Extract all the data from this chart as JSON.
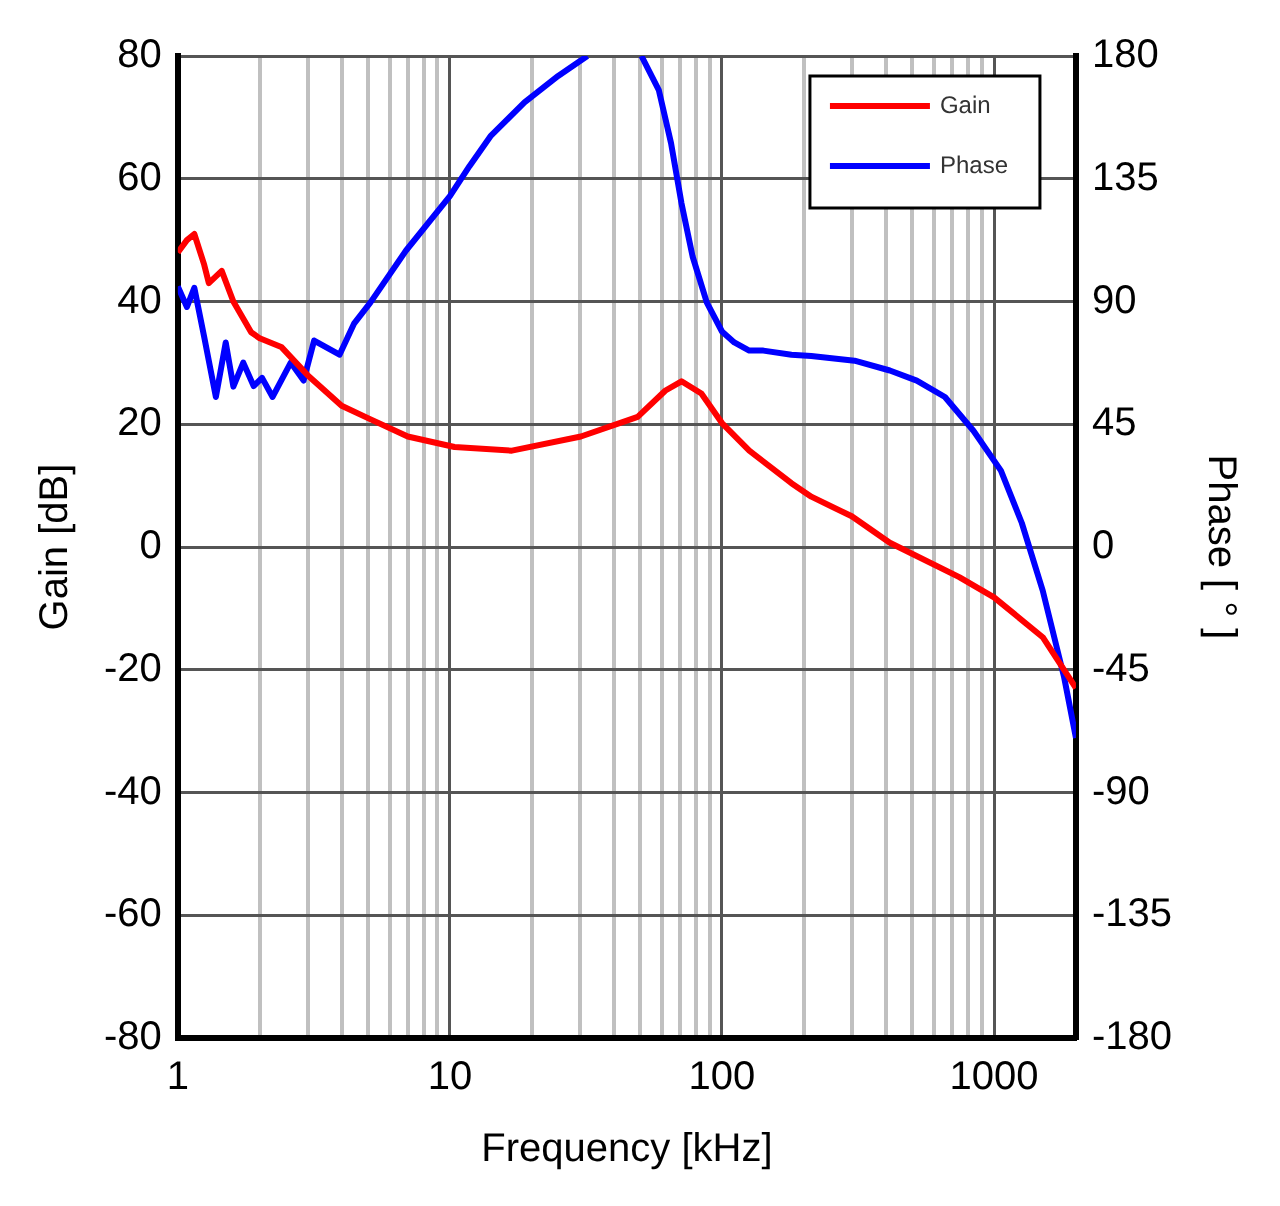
{
  "chart_data": {
    "type": "line",
    "xlabel": "Frequency [kHz]",
    "ylabel": "Gain [dB]",
    "y2label": "Phase [ ° ]",
    "log": "x",
    "grid": true,
    "legend": "top right",
    "marker": "none",
    "line_style": "solid",
    "xlim": [
      1,
      2000
    ],
    "xticks": [
      1,
      {
        "value": 2,
        "label": null
      },
      {
        "value": 3,
        "label": null
      },
      {
        "value": 4,
        "label": null
      },
      {
        "value": 5,
        "label": null
      },
      {
        "value": 6,
        "label": null
      },
      {
        "value": 7,
        "label": null
      },
      {
        "value": 8,
        "label": null
      },
      {
        "value": 9,
        "label": null
      },
      10,
      {
        "value": 20,
        "label": null
      },
      {
        "value": 30,
        "label": null
      },
      {
        "value": 40,
        "label": null
      },
      {
        "value": 50,
        "label": null
      },
      {
        "value": 60,
        "label": null
      },
      {
        "value": 70,
        "label": null
      },
      {
        "value": 80,
        "label": null
      },
      {
        "value": 90,
        "label": null
      },
      100,
      {
        "value": 200,
        "label": null
      },
      {
        "value": 300,
        "label": null
      },
      {
        "value": 400,
        "label": null
      },
      {
        "value": 500,
        "label": null
      },
      {
        "value": 600,
        "label": null
      },
      {
        "value": 700,
        "label": null
      },
      {
        "value": 800,
        "label": null
      },
      {
        "value": 900,
        "label": null
      },
      1000
    ],
    "ylim": [
      -80,
      80
    ],
    "yticks": [
      -80,
      -60,
      -40,
      -20,
      0,
      20,
      40,
      60,
      80
    ],
    "y2lim": [
      -180,
      180
    ],
    "y2ticks": [
      -180,
      -135,
      -90,
      -45,
      0,
      45,
      90,
      135,
      180
    ],
    "series": [
      {
        "name": "Gain",
        "color": "#ff0000",
        "x": [
          1,
          1.08,
          1.15,
          1.25,
          1.3,
          1.45,
          1.6,
          1.86,
          2.0,
          2.4,
          3,
          4,
          5,
          7,
          10.4,
          16.9,
          30.3,
          49,
          62,
          71,
          84,
          100,
          126,
          180,
          213,
          300,
          414,
          745,
          1000,
          1510,
          2000
        ],
        "values": [
          48,
          50,
          51,
          46,
          43,
          45,
          40,
          35,
          34,
          32.6,
          28,
          23,
          21,
          18,
          16.3,
          15.7,
          18,
          21.2,
          25.5,
          27,
          25,
          20.2,
          15.7,
          10.4,
          8.2,
          5,
          0.7,
          -4.9,
          -8.2,
          -14.7,
          -23
        ]
      },
      {
        "name": "Phase",
        "color": "#0000ff",
        "axis": "y2",
        "x": [
          1,
          1.08,
          1.15,
          1.25,
          1.38,
          1.5,
          1.6,
          1.74,
          1.9,
          2.04,
          2.23,
          2.6,
          2.9,
          3.17,
          3.93,
          4.45,
          5.1,
          6.9,
          10,
          11.8,
          14.1,
          18.8,
          25,
          32,
          40,
          50.6,
          58.6,
          65,
          71,
          78,
          88,
          100,
          111,
          126,
          142,
          180,
          213,
          307,
          414,
          520,
          660,
          840,
          1060,
          1265,
          1510,
          1810,
          2000
        ],
        "values": [
          95.5,
          88,
          95,
          77,
          55,
          75,
          58.8,
          67.6,
          59,
          62,
          55,
          67.6,
          61,
          75.7,
          70.5,
          82,
          89.6,
          108.7,
          128.6,
          139.6,
          150.6,
          163,
          172.7,
          180,
          null,
          180,
          167.5,
          148,
          126,
          106.5,
          89.6,
          79,
          75,
          72,
          72,
          70.5,
          70,
          68.3,
          64.7,
          61,
          55,
          42.6,
          28,
          8.8,
          -16,
          -47.8,
          -70
        ]
      }
    ]
  }
}
